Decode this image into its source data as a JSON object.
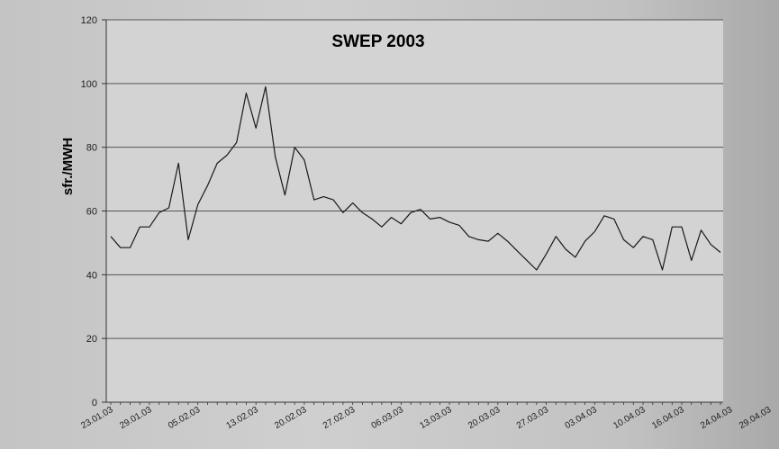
{
  "chart_data": {
    "type": "line",
    "title": "SWEP 2003",
    "ylabel": "sfr./MWH",
    "xlabel": "",
    "ylim": [
      0,
      120
    ],
    "yticks": [
      0,
      20,
      40,
      60,
      80,
      100,
      120
    ],
    "grid": true,
    "legend": "none",
    "colors": {
      "line": "#1a1a1a",
      "plot_bg": "#d3d3d3",
      "grid": "#555555"
    },
    "x_tick_labels": [
      "23.01.03",
      "29.01.03",
      "05.02.03",
      "13.02.03",
      "20.02.03",
      "27.02.03",
      "06.03.03",
      "13.03.03",
      "20.03.03",
      "27.03.03",
      "03.04.03",
      "10.04.03",
      "16.04.03",
      "24.04.03",
      "29.04.03"
    ],
    "x_tick_positions": [
      0,
      4,
      9,
      15,
      20,
      25,
      30,
      35,
      40,
      45,
      50,
      55,
      59,
      64,
      68
    ],
    "series": [
      {
        "values": [
          52,
          48.5,
          48.5,
          55,
          55,
          59.5,
          61,
          75,
          51,
          62,
          68,
          75,
          77.5,
          81.5,
          97,
          86,
          99,
          77,
          65,
          80,
          76,
          63.5,
          64.5,
          63.5,
          59.5,
          62.5,
          59.5,
          57.5,
          55,
          58,
          56,
          59.5,
          60.5,
          57.5,
          58,
          56.5,
          55.5,
          52,
          51,
          50.5,
          53,
          50.5,
          47.5,
          44.5,
          41.5,
          46.5,
          52,
          48,
          45.5,
          50.5,
          53.5,
          58.5,
          57.5,
          51,
          48.5,
          52,
          51,
          41.5,
          55,
          55,
          44.5,
          54,
          49.5,
          47
        ]
      }
    ]
  }
}
